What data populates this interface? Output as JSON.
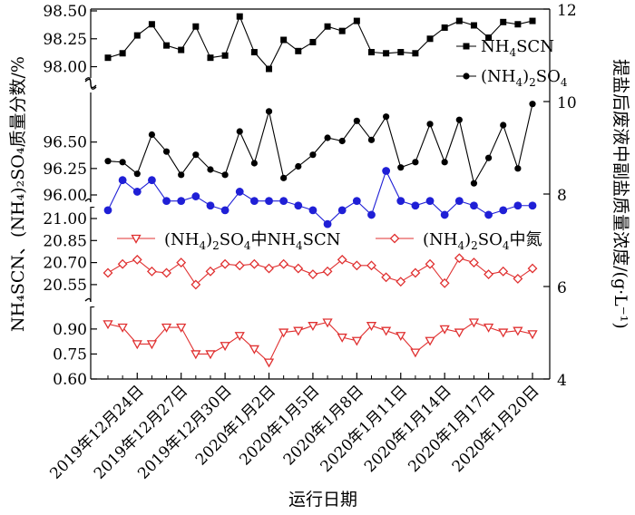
{
  "chart_data": {
    "type": "line",
    "xlabel": "运行日期",
    "ylabel_left": "NH₄SCN、(NH₄)₂SO₄质量分数/%",
    "ylabel_right": "提盐后废液中副盐质量浓度/(g·L⁻¹)",
    "y_axis_breaks": true,
    "x_ticks": [
      "2019年12月24日",
      "2019年12月27日",
      "2019年12月30日",
      "2020年1月2日",
      "2020年1月5日",
      "2020年1月8日",
      "2020年1月11日",
      "2020年1月14日",
      "2020年1月17日",
      "2020年1月20日"
    ],
    "left_ticks": {
      "band_top": [
        "98.50",
        "98.25",
        "98.00"
      ],
      "band_middle": [
        "96.50",
        "96.25",
        "96.00",
        "21.00",
        "20.85",
        "20.70",
        "20.55"
      ],
      "band_bottom": [
        "0.90",
        "0.75",
        "0.60"
      ]
    },
    "right_ticks": [
      "12",
      "10",
      "8",
      "6",
      "4"
    ],
    "right_ylim": [
      4,
      12
    ],
    "x_dates": [
      "2019-12-22",
      "2019-12-23",
      "2019-12-24",
      "2019-12-25",
      "2019-12-26",
      "2019-12-27",
      "2019-12-28",
      "2019-12-29",
      "2019-12-30",
      "2019-12-31",
      "2020-01-01",
      "2020-01-02",
      "2020-01-03",
      "2020-01-04",
      "2020-01-05",
      "2020-01-06",
      "2020-01-07",
      "2020-01-08",
      "2020-01-09",
      "2020-01-10",
      "2020-01-11",
      "2020-01-12",
      "2020-01-13",
      "2020-01-14",
      "2020-01-15",
      "2020-01-16",
      "2020-01-17",
      "2020-01-18",
      "2020-01-19",
      "2020-01-20"
    ],
    "series": [
      {
        "name": "NH₄SCN",
        "name_base": "NH",
        "name_sub": "4",
        "name_rest": "SCN",
        "axis": "left",
        "color": "#000000",
        "marker": "square",
        "values": [
          98.08,
          98.12,
          98.28,
          98.38,
          98.19,
          98.15,
          98.36,
          98.08,
          98.1,
          98.45,
          98.13,
          97.98,
          98.24,
          98.14,
          98.22,
          98.36,
          98.32,
          98.41,
          98.13,
          98.12,
          98.13,
          98.12,
          98.25,
          98.35,
          98.41,
          98.37,
          98.26,
          98.4,
          98.38,
          98.41
        ]
      },
      {
        "name": "(NH₄)₂SO₄",
        "name_base": "(NH",
        "name_sub": "4",
        "name_mid": ")",
        "name_sub2": "2",
        "name_rest": "SO",
        "name_sub3": "4",
        "axis": "left",
        "color": "#000000",
        "marker": "circle",
        "values": [
          96.32,
          96.31,
          96.2,
          96.57,
          96.41,
          96.19,
          96.38,
          96.24,
          96.19,
          96.6,
          96.3,
          96.79,
          96.16,
          96.27,
          96.38,
          96.54,
          96.51,
          96.7,
          96.52,
          96.74,
          96.26,
          96.31,
          96.67,
          96.31,
          96.71,
          96.11,
          96.35,
          96.66,
          96.25,
          96.86
        ]
      },
      {
        "name": "副盐质量浓度",
        "axis": "right",
        "color": "#1f1fd6",
        "marker": "circle",
        "values": [
          7.65,
          8.3,
          8.05,
          8.3,
          7.85,
          7.85,
          7.95,
          7.75,
          7.65,
          8.05,
          7.85,
          7.85,
          7.85,
          7.75,
          7.65,
          7.35,
          7.65,
          7.85,
          7.55,
          8.5,
          7.85,
          7.75,
          7.85,
          7.55,
          7.85,
          7.75,
          7.55,
          7.65,
          7.75,
          7.75
        ]
      },
      {
        "name": "(NH₄)₂SO₄中氮",
        "name_base": "(NH",
        "name_sub": "4",
        "name_mid": ")",
        "name_sub2": "2",
        "name_rest": "SO",
        "name_sub3": "4",
        "name_tail": "中氮",
        "axis": "left",
        "color": "#e03030",
        "marker": "diamond",
        "values": [
          20.63,
          20.69,
          20.72,
          20.64,
          20.63,
          20.7,
          20.55,
          20.64,
          20.69,
          20.68,
          20.69,
          20.66,
          20.69,
          20.66,
          20.62,
          20.64,
          20.72,
          20.68,
          20.68,
          20.6,
          20.57,
          20.63,
          20.69,
          20.56,
          20.73,
          20.7,
          20.62,
          20.64,
          20.59,
          20.66
        ]
      },
      {
        "name": "(NH₄)₂SO₄中NH₄SCN",
        "name_base": "(NH",
        "name_sub": "4",
        "name_mid": ")",
        "name_sub2": "2",
        "name_rest": "SO",
        "name_sub3": "4",
        "name_tail": "中NH",
        "name_sub4": "4",
        "name_tail2": "SCN",
        "axis": "left",
        "color": "#e03030",
        "marker": "triangle-down",
        "values": [
          0.93,
          0.91,
          0.81,
          0.81,
          0.91,
          0.91,
          0.75,
          0.75,
          0.8,
          0.86,
          0.78,
          0.7,
          0.88,
          0.89,
          0.92,
          0.94,
          0.85,
          0.83,
          0.92,
          0.89,
          0.86,
          0.76,
          0.83,
          0.9,
          0.88,
          0.94,
          0.91,
          0.88,
          0.89,
          0.87
        ]
      }
    ]
  }
}
